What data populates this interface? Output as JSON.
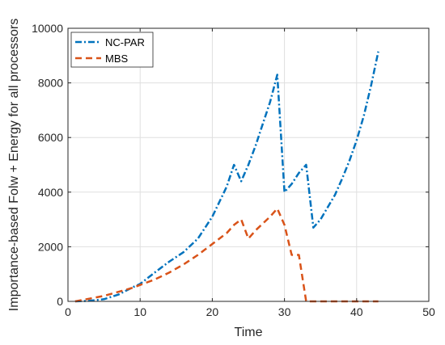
{
  "chart_data": {
    "type": "line",
    "title": "",
    "xlabel": "Time",
    "ylabel": "Importance-based Folw + Energy for all processors",
    "xlim": [
      0,
      50
    ],
    "ylim": [
      0,
      10000
    ],
    "xticks": [
      0,
      10,
      20,
      30,
      40,
      50
    ],
    "yticks": [
      0,
      2000,
      4000,
      6000,
      8000,
      10000
    ],
    "xtick_labels": [
      "0",
      "10",
      "20",
      "30",
      "40",
      "50"
    ],
    "ytick_labels": [
      "0",
      "2000",
      "4000",
      "6000",
      "8000",
      "10000"
    ],
    "grid": true,
    "legend_position": "top-left",
    "series": [
      {
        "name": "NC-PAR",
        "color": "#0072BD",
        "line_style": "dash-dot",
        "x": [
          1,
          3,
          5,
          7,
          9,
          10,
          12,
          14,
          16,
          18,
          20,
          22,
          23,
          24,
          25,
          26,
          27,
          28,
          29,
          30,
          31,
          32,
          33,
          34,
          35,
          36,
          37,
          38,
          39,
          40,
          41,
          42,
          43
        ],
        "y": [
          0,
          20,
          80,
          250,
          520,
          640,
          1050,
          1450,
          1800,
          2300,
          3100,
          4200,
          5000,
          4400,
          5000,
          5700,
          6500,
          7300,
          8300,
          4000,
          4300,
          4700,
          5000,
          2700,
          3000,
          3450,
          3900,
          4500,
          5150,
          5900,
          6800,
          7900,
          9150
        ]
      },
      {
        "name": "MBS",
        "color": "#D95319",
        "line_style": "dashed",
        "x": [
          1,
          3,
          5,
          7,
          9,
          10,
          12,
          14,
          16,
          18,
          20,
          22,
          23,
          24,
          25,
          26,
          27,
          28,
          29,
          30,
          31,
          32,
          33,
          34,
          36,
          38,
          40,
          42,
          43
        ],
        "y": [
          0,
          100,
          200,
          350,
          500,
          600,
          800,
          1050,
          1350,
          1700,
          2100,
          2500,
          2800,
          3000,
          2300,
          2600,
          2850,
          3100,
          3400,
          2800,
          1700,
          1700,
          0,
          0,
          0,
          0,
          0,
          0,
          0
        ]
      }
    ]
  }
}
